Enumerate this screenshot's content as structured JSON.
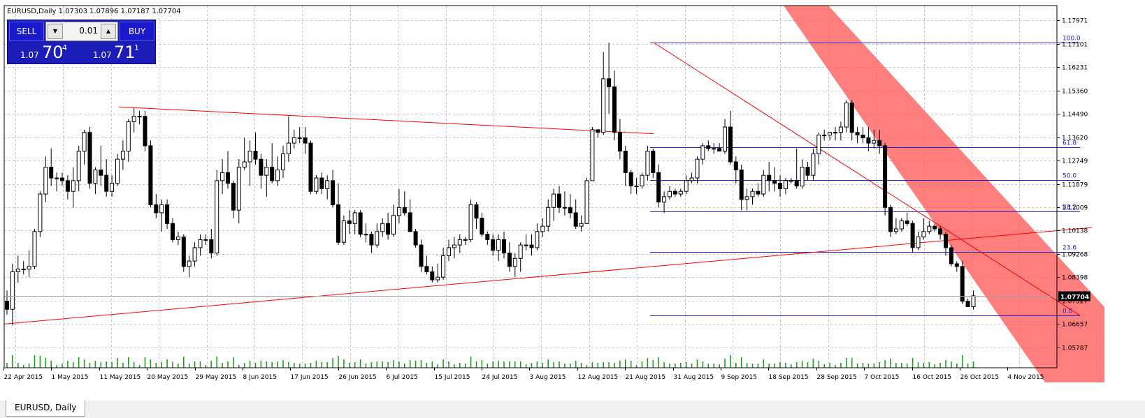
{
  "header": {
    "text": "EURUSD,Daily  1.07303 1.07896 1.07187 1.07704"
  },
  "trade_panel": {
    "sell_label": "SELL",
    "buy_label": "BUY",
    "lot_value": "0.01",
    "sell_price": {
      "prefix": "1.07",
      "big": "70",
      "sup": "4"
    },
    "buy_price": {
      "prefix": "1.07",
      "big": "71",
      "sup": "1"
    }
  },
  "tab": {
    "label": "EURUSD, Daily"
  },
  "colors": {
    "bull": "#ffffff",
    "bear": "#000000",
    "grid": "#c8c8c8",
    "trendline": "#ff0000",
    "fib": "#2020d0",
    "channel": "#ff5a5a",
    "volume": "#1e9e1e",
    "price_tag": "#000000"
  },
  "chart_data": {
    "type": "candlestick",
    "symbol": "EURUSD",
    "timeframe": "Daily",
    "current_price": 1.07704,
    "current_price_label": "1.07704",
    "ylim": [
      1.0502,
      1.1853
    ],
    "y_ticks": [
      "1.17971",
      "1.17101",
      "1.16231",
      "1.15360",
      "1.14490",
      "1.13620",
      "1.12749",
      "1.11879",
      "1.11009",
      "1.10138",
      "1.09268",
      "1.08398",
      "1.07527",
      "1.06657",
      "1.05787"
    ],
    "x_tick_labels": [
      "22 Apr 2015",
      "1 May 2015",
      "11 May 2015",
      "20 May 2015",
      "29 May 2015",
      "8 Jun 2015",
      "17 Jun 2015",
      "26 Jun 2015",
      "6 Jul 2015",
      "15 Jul 2015",
      "24 Jul 2015",
      "3 Aug 2015",
      "12 Aug 2015",
      "21 Aug 2015",
      "31 Aug 2015",
      "9 Sep 2015",
      "18 Sep 2015",
      "28 Sep 2015",
      "7 Oct 2015",
      "16 Oct 2015",
      "26 Oct 2015",
      "4 Nov 2015"
    ],
    "fibonacci": {
      "levels": [
        {
          "label": "100.0",
          "value": 1.1715
        },
        {
          "label": "61.8",
          "value": 1.1324
        },
        {
          "label": "50.0",
          "value": 1.1203
        },
        {
          "label": "38.2",
          "value": 1.1084
        },
        {
          "label": "23.6",
          "value": 1.0935
        },
        {
          "label": "0.0",
          "value": 1.0697
        }
      ]
    },
    "candles": [
      {
        "o": 1.075,
        "h": 1.079,
        "l": 1.07,
        "c": 1.072
      },
      {
        "o": 1.072,
        "h": 1.089,
        "l": 1.066,
        "c": 1.086
      },
      {
        "o": 1.086,
        "h": 1.092,
        "l": 1.082,
        "c": 1.087
      },
      {
        "o": 1.087,
        "h": 1.09,
        "l": 1.085,
        "c": 1.087
      },
      {
        "o": 1.087,
        "h": 1.094,
        "l": 1.084,
        "c": 1.088
      },
      {
        "o": 1.088,
        "h": 1.102,
        "l": 1.087,
        "c": 1.101
      },
      {
        "o": 1.101,
        "h": 1.116,
        "l": 1.099,
        "c": 1.115
      },
      {
        "o": 1.115,
        "h": 1.129,
        "l": 1.112,
        "c": 1.125
      },
      {
        "o": 1.125,
        "h": 1.132,
        "l": 1.118,
        "c": 1.121
      },
      {
        "o": 1.121,
        "h": 1.123,
        "l": 1.116,
        "c": 1.121
      },
      {
        "o": 1.121,
        "h": 1.123,
        "l": 1.118,
        "c": 1.12
      },
      {
        "o": 1.12,
        "h": 1.122,
        "l": 1.113,
        "c": 1.116
      },
      {
        "o": 1.116,
        "h": 1.125,
        "l": 1.11,
        "c": 1.12
      },
      {
        "o": 1.12,
        "h": 1.133,
        "l": 1.116,
        "c": 1.131
      },
      {
        "o": 1.131,
        "h": 1.139,
        "l": 1.126,
        "c": 1.138
      },
      {
        "o": 1.138,
        "h": 1.14,
        "l": 1.117,
        "c": 1.119
      },
      {
        "o": 1.119,
        "h": 1.125,
        "l": 1.115,
        "c": 1.124
      },
      {
        "o": 1.124,
        "h": 1.133,
        "l": 1.118,
        "c": 1.122
      },
      {
        "o": 1.122,
        "h": 1.128,
        "l": 1.114,
        "c": 1.116
      },
      {
        "o": 1.116,
        "h": 1.122,
        "l": 1.114,
        "c": 1.119
      },
      {
        "o": 1.119,
        "h": 1.13,
        "l": 1.118,
        "c": 1.128
      },
      {
        "o": 1.128,
        "h": 1.135,
        "l": 1.124,
        "c": 1.131
      },
      {
        "o": 1.131,
        "h": 1.143,
        "l": 1.127,
        "c": 1.142
      },
      {
        "o": 1.142,
        "h": 1.147,
        "l": 1.138,
        "c": 1.144
      },
      {
        "o": 1.144,
        "h": 1.146,
        "l": 1.141,
        "c": 1.144
      },
      {
        "o": 1.144,
        "h": 1.146,
        "l": 1.131,
        "c": 1.133
      },
      {
        "o": 1.133,
        "h": 1.135,
        "l": 1.11,
        "c": 1.111
      },
      {
        "o": 1.111,
        "h": 1.115,
        "l": 1.106,
        "c": 1.108
      },
      {
        "o": 1.108,
        "h": 1.113,
        "l": 1.101,
        "c": 1.111
      },
      {
        "o": 1.111,
        "h": 1.113,
        "l": 1.102,
        "c": 1.104
      },
      {
        "o": 1.104,
        "h": 1.106,
        "l": 1.097,
        "c": 1.098
      },
      {
        "o": 1.098,
        "h": 1.101,
        "l": 1.096,
        "c": 1.099
      },
      {
        "o": 1.099,
        "h": 1.1,
        "l": 1.086,
        "c": 1.088
      },
      {
        "o": 1.088,
        "h": 1.092,
        "l": 1.084,
        "c": 1.09
      },
      {
        "o": 1.09,
        "h": 1.097,
        "l": 1.088,
        "c": 1.095
      },
      {
        "o": 1.095,
        "h": 1.1,
        "l": 1.092,
        "c": 1.098
      },
      {
        "o": 1.098,
        "h": 1.1,
        "l": 1.096,
        "c": 1.098
      },
      {
        "o": 1.098,
        "h": 1.102,
        "l": 1.091,
        "c": 1.093
      },
      {
        "o": 1.093,
        "h": 1.124,
        "l": 1.092,
        "c": 1.12
      },
      {
        "o": 1.12,
        "h": 1.128,
        "l": 1.115,
        "c": 1.123
      },
      {
        "o": 1.123,
        "h": 1.131,
        "l": 1.117,
        "c": 1.119
      },
      {
        "o": 1.119,
        "h": 1.12,
        "l": 1.106,
        "c": 1.109
      },
      {
        "o": 1.109,
        "h": 1.128,
        "l": 1.104,
        "c": 1.125
      },
      {
        "o": 1.125,
        "h": 1.136,
        "l": 1.124,
        "c": 1.127
      },
      {
        "o": 1.127,
        "h": 1.135,
        "l": 1.118,
        "c": 1.131
      },
      {
        "o": 1.131,
        "h": 1.138,
        "l": 1.126,
        "c": 1.128
      },
      {
        "o": 1.128,
        "h": 1.13,
        "l": 1.117,
        "c": 1.122
      },
      {
        "o": 1.122,
        "h": 1.128,
        "l": 1.114,
        "c": 1.125
      },
      {
        "o": 1.125,
        "h": 1.134,
        "l": 1.119,
        "c": 1.12
      },
      {
        "o": 1.12,
        "h": 1.129,
        "l": 1.118,
        "c": 1.124
      },
      {
        "o": 1.124,
        "h": 1.133,
        "l": 1.121,
        "c": 1.13
      },
      {
        "o": 1.13,
        "h": 1.144,
        "l": 1.127,
        "c": 1.134
      },
      {
        "o": 1.134,
        "h": 1.139,
        "l": 1.132,
        "c": 1.136
      },
      {
        "o": 1.136,
        "h": 1.14,
        "l": 1.134,
        "c": 1.136
      },
      {
        "o": 1.136,
        "h": 1.14,
        "l": 1.13,
        "c": 1.134
      },
      {
        "o": 1.134,
        "h": 1.135,
        "l": 1.115,
        "c": 1.116
      },
      {
        "o": 1.116,
        "h": 1.122,
        "l": 1.115,
        "c": 1.121
      },
      {
        "o": 1.121,
        "h": 1.123,
        "l": 1.115,
        "c": 1.117
      },
      {
        "o": 1.117,
        "h": 1.122,
        "l": 1.113,
        "c": 1.12
      },
      {
        "o": 1.12,
        "h": 1.124,
        "l": 1.11,
        "c": 1.111
      },
      {
        "o": 1.111,
        "h": 1.119,
        "l": 1.096,
        "c": 1.097
      },
      {
        "o": 1.097,
        "h": 1.107,
        "l": 1.096,
        "c": 1.105
      },
      {
        "o": 1.105,
        "h": 1.109,
        "l": 1.1,
        "c": 1.104
      },
      {
        "o": 1.104,
        "h": 1.109,
        "l": 1.1,
        "c": 1.108
      },
      {
        "o": 1.108,
        "h": 1.109,
        "l": 1.099,
        "c": 1.1
      },
      {
        "o": 1.1,
        "h": 1.104,
        "l": 1.097,
        "c": 1.1
      },
      {
        "o": 1.1,
        "h": 1.101,
        "l": 1.093,
        "c": 1.096
      },
      {
        "o": 1.096,
        "h": 1.104,
        "l": 1.095,
        "c": 1.101
      },
      {
        "o": 1.101,
        "h": 1.106,
        "l": 1.099,
        "c": 1.104
      },
      {
        "o": 1.104,
        "h": 1.108,
        "l": 1.098,
        "c": 1.1
      },
      {
        "o": 1.1,
        "h": 1.111,
        "l": 1.099,
        "c": 1.107
      },
      {
        "o": 1.107,
        "h": 1.117,
        "l": 1.104,
        "c": 1.11
      },
      {
        "o": 1.11,
        "h": 1.116,
        "l": 1.107,
        "c": 1.108
      },
      {
        "o": 1.108,
        "h": 1.113,
        "l": 1.101,
        "c": 1.101
      },
      {
        "o": 1.101,
        "h": 1.102,
        "l": 1.095,
        "c": 1.096
      },
      {
        "o": 1.096,
        "h": 1.098,
        "l": 1.086,
        "c": 1.088
      },
      {
        "o": 1.088,
        "h": 1.092,
        "l": 1.085,
        "c": 1.086
      },
      {
        "o": 1.086,
        "h": 1.088,
        "l": 1.082,
        "c": 1.083
      },
      {
        "o": 1.083,
        "h": 1.089,
        "l": 1.082,
        "c": 1.084
      },
      {
        "o": 1.084,
        "h": 1.095,
        "l": 1.083,
        "c": 1.092
      },
      {
        "o": 1.092,
        "h": 1.098,
        "l": 1.09,
        "c": 1.095
      },
      {
        "o": 1.095,
        "h": 1.099,
        "l": 1.091,
        "c": 1.096
      },
      {
        "o": 1.096,
        "h": 1.1,
        "l": 1.093,
        "c": 1.098
      },
      {
        "o": 1.098,
        "h": 1.099,
        "l": 1.096,
        "c": 1.098
      },
      {
        "o": 1.098,
        "h": 1.113,
        "l": 1.097,
        "c": 1.111
      },
      {
        "o": 1.111,
        "h": 1.112,
        "l": 1.102,
        "c": 1.106
      },
      {
        "o": 1.106,
        "h": 1.108,
        "l": 1.099,
        "c": 1.1
      },
      {
        "o": 1.1,
        "h": 1.101,
        "l": 1.096,
        "c": 1.098
      },
      {
        "o": 1.098,
        "h": 1.1,
        "l": 1.092,
        "c": 1.094
      },
      {
        "o": 1.094,
        "h": 1.1,
        "l": 1.09,
        "c": 1.098
      },
      {
        "o": 1.098,
        "h": 1.101,
        "l": 1.091,
        "c": 1.093
      },
      {
        "o": 1.093,
        "h": 1.097,
        "l": 1.086,
        "c": 1.088
      },
      {
        "o": 1.088,
        "h": 1.093,
        "l": 1.084,
        "c": 1.091
      },
      {
        "o": 1.091,
        "h": 1.097,
        "l": 1.086,
        "c": 1.096
      },
      {
        "o": 1.096,
        "h": 1.1,
        "l": 1.094,
        "c": 1.096
      },
      {
        "o": 1.096,
        "h": 1.1,
        "l": 1.092,
        "c": 1.095
      },
      {
        "o": 1.095,
        "h": 1.104,
        "l": 1.094,
        "c": 1.101
      },
      {
        "o": 1.101,
        "h": 1.106,
        "l": 1.099,
        "c": 1.103
      },
      {
        "o": 1.103,
        "h": 1.113,
        "l": 1.101,
        "c": 1.11
      },
      {
        "o": 1.11,
        "h": 1.117,
        "l": 1.105,
        "c": 1.115
      },
      {
        "o": 1.115,
        "h": 1.118,
        "l": 1.108,
        "c": 1.11
      },
      {
        "o": 1.11,
        "h": 1.116,
        "l": 1.107,
        "c": 1.11
      },
      {
        "o": 1.11,
        "h": 1.115,
        "l": 1.106,
        "c": 1.108
      },
      {
        "o": 1.108,
        "h": 1.113,
        "l": 1.102,
        "c": 1.103
      },
      {
        "o": 1.103,
        "h": 1.107,
        "l": 1.101,
        "c": 1.104
      },
      {
        "o": 1.104,
        "h": 1.121,
        "l": 1.104,
        "c": 1.12
      },
      {
        "o": 1.12,
        "h": 1.14,
        "l": 1.12,
        "c": 1.139
      },
      {
        "o": 1.139,
        "h": 1.139,
        "l": 1.136,
        "c": 1.138
      },
      {
        "o": 1.138,
        "h": 1.168,
        "l": 1.137,
        "c": 1.158
      },
      {
        "o": 1.158,
        "h": 1.1715,
        "l": 1.145,
        "c": 1.155
      },
      {
        "o": 1.155,
        "h": 1.161,
        "l": 1.135,
        "c": 1.138
      },
      {
        "o": 1.138,
        "h": 1.143,
        "l": 1.128,
        "c": 1.131
      },
      {
        "o": 1.131,
        "h": 1.133,
        "l": 1.118,
        "c": 1.123
      },
      {
        "o": 1.123,
        "h": 1.124,
        "l": 1.115,
        "c": 1.118
      },
      {
        "o": 1.118,
        "h": 1.121,
        "l": 1.115,
        "c": 1.118
      },
      {
        "o": 1.118,
        "h": 1.123,
        "l": 1.117,
        "c": 1.122
      },
      {
        "o": 1.122,
        "h": 1.133,
        "l": 1.12,
        "c": 1.131
      },
      {
        "o": 1.131,
        "h": 1.132,
        "l": 1.121,
        "c": 1.123
      },
      {
        "o": 1.123,
        "h": 1.126,
        "l": 1.11,
        "c": 1.112
      },
      {
        "o": 1.112,
        "h": 1.116,
        "l": 1.108,
        "c": 1.114
      },
      {
        "o": 1.114,
        "h": 1.118,
        "l": 1.113,
        "c": 1.116
      },
      {
        "o": 1.116,
        "h": 1.117,
        "l": 1.114,
        "c": 1.115
      },
      {
        "o": 1.115,
        "h": 1.117,
        "l": 1.114,
        "c": 1.116
      },
      {
        "o": 1.116,
        "h": 1.122,
        "l": 1.115,
        "c": 1.12
      },
      {
        "o": 1.12,
        "h": 1.123,
        "l": 1.119,
        "c": 1.121
      },
      {
        "o": 1.121,
        "h": 1.129,
        "l": 1.119,
        "c": 1.128
      },
      {
        "o": 1.128,
        "h": 1.134,
        "l": 1.126,
        "c": 1.133
      },
      {
        "o": 1.133,
        "h": 1.135,
        "l": 1.131,
        "c": 1.132
      },
      {
        "o": 1.132,
        "h": 1.134,
        "l": 1.13,
        "c": 1.132
      },
      {
        "o": 1.132,
        "h": 1.134,
        "l": 1.131,
        "c": 1.131
      },
      {
        "o": 1.131,
        "h": 1.143,
        "l": 1.13,
        "c": 1.14
      },
      {
        "o": 1.14,
        "h": 1.146,
        "l": 1.126,
        "c": 1.127
      },
      {
        "o": 1.127,
        "h": 1.129,
        "l": 1.119,
        "c": 1.124
      },
      {
        "o": 1.124,
        "h": 1.126,
        "l": 1.109,
        "c": 1.113
      },
      {
        "o": 1.113,
        "h": 1.117,
        "l": 1.109,
        "c": 1.114
      },
      {
        "o": 1.114,
        "h": 1.117,
        "l": 1.111,
        "c": 1.116
      },
      {
        "o": 1.116,
        "h": 1.119,
        "l": 1.114,
        "c": 1.115
      },
      {
        "o": 1.115,
        "h": 1.124,
        "l": 1.114,
        "c": 1.122
      },
      {
        "o": 1.122,
        "h": 1.127,
        "l": 1.116,
        "c": 1.12
      },
      {
        "o": 1.12,
        "h": 1.125,
        "l": 1.116,
        "c": 1.119
      },
      {
        "o": 1.119,
        "h": 1.122,
        "l": 1.114,
        "c": 1.117
      },
      {
        "o": 1.117,
        "h": 1.121,
        "l": 1.115,
        "c": 1.12
      },
      {
        "o": 1.12,
        "h": 1.121,
        "l": 1.119,
        "c": 1.12
      },
      {
        "o": 1.12,
        "h": 1.132,
        "l": 1.117,
        "c": 1.118
      },
      {
        "o": 1.118,
        "h": 1.128,
        "l": 1.117,
        "c": 1.125
      },
      {
        "o": 1.125,
        "h": 1.127,
        "l": 1.12,
        "c": 1.122
      },
      {
        "o": 1.122,
        "h": 1.132,
        "l": 1.12,
        "c": 1.13
      },
      {
        "o": 1.13,
        "h": 1.138,
        "l": 1.126,
        "c": 1.137
      },
      {
        "o": 1.137,
        "h": 1.139,
        "l": 1.135,
        "c": 1.137
      },
      {
        "o": 1.137,
        "h": 1.138,
        "l": 1.135,
        "c": 1.138
      },
      {
        "o": 1.138,
        "h": 1.14,
        "l": 1.135,
        "c": 1.138
      },
      {
        "o": 1.138,
        "h": 1.142,
        "l": 1.135,
        "c": 1.14
      },
      {
        "o": 1.14,
        "h": 1.15,
        "l": 1.138,
        "c": 1.149
      },
      {
        "o": 1.149,
        "h": 1.15,
        "l": 1.135,
        "c": 1.138
      },
      {
        "o": 1.138,
        "h": 1.14,
        "l": 1.134,
        "c": 1.137
      },
      {
        "o": 1.137,
        "h": 1.14,
        "l": 1.134,
        "c": 1.136
      },
      {
        "o": 1.136,
        "h": 1.14,
        "l": 1.131,
        "c": 1.134
      },
      {
        "o": 1.134,
        "h": 1.139,
        "l": 1.132,
        "c": 1.135
      },
      {
        "o": 1.135,
        "h": 1.139,
        "l": 1.13,
        "c": 1.133
      },
      {
        "o": 1.133,
        "h": 1.134,
        "l": 1.107,
        "c": 1.11
      },
      {
        "o": 1.11,
        "h": 1.111,
        "l": 1.099,
        "c": 1.101
      },
      {
        "o": 1.101,
        "h": 1.106,
        "l": 1.1,
        "c": 1.102
      },
      {
        "o": 1.102,
        "h": 1.106,
        "l": 1.101,
        "c": 1.105
      },
      {
        "o": 1.105,
        "h": 1.108,
        "l": 1.103,
        "c": 1.104
      },
      {
        "o": 1.104,
        "h": 1.105,
        "l": 1.093,
        "c": 1.095
      },
      {
        "o": 1.095,
        "h": 1.101,
        "l": 1.094,
        "c": 1.099
      },
      {
        "o": 1.099,
        "h": 1.106,
        "l": 1.098,
        "c": 1.101
      },
      {
        "o": 1.101,
        "h": 1.105,
        "l": 1.1,
        "c": 1.103
      },
      {
        "o": 1.103,
        "h": 1.104,
        "l": 1.101,
        "c": 1.102
      },
      {
        "o": 1.102,
        "h": 1.103,
        "l": 1.098,
        "c": 1.1
      },
      {
        "o": 1.1,
        "h": 1.101,
        "l": 1.092,
        "c": 1.095
      },
      {
        "o": 1.095,
        "h": 1.096,
        "l": 1.088,
        "c": 1.089
      },
      {
        "o": 1.089,
        "h": 1.09,
        "l": 1.086,
        "c": 1.088
      },
      {
        "o": 1.088,
        "h": 1.09,
        "l": 1.074,
        "c": 1.075
      },
      {
        "o": 1.075,
        "h": 1.076,
        "l": 1.073,
        "c": 1.073
      },
      {
        "o": 1.073,
        "h": 1.079,
        "l": 1.0719,
        "c": 1.07704
      }
    ]
  }
}
